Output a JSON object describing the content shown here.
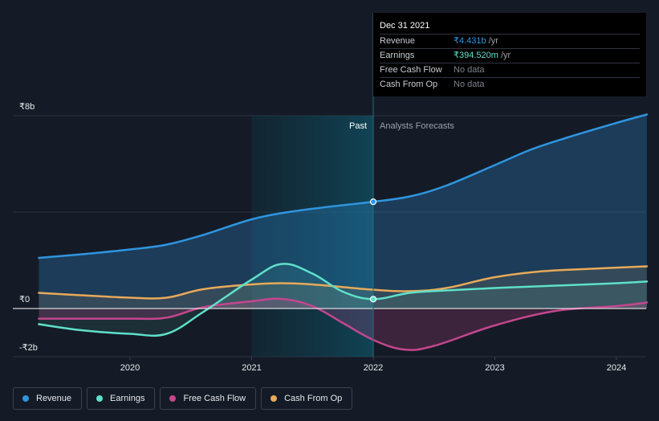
{
  "chart_data": {
    "type": "line",
    "y_tick_labels": [
      "₹8b",
      "₹0",
      "-₹2b"
    ],
    "ylim": [
      -2,
      8
    ],
    "x_tick_labels": [
      "2020",
      "2021",
      "2022",
      "2023",
      "2024"
    ],
    "section_labels": {
      "past": "Past",
      "forecast": "Analysts Forecasts"
    },
    "divider_x": 2022.0,
    "highlight_start_x": 2021.0,
    "series": [
      {
        "name": "Revenue",
        "color": "#2f95e0",
        "x": [
          2019.25,
          2019.6,
          2020.0,
          2020.3,
          2020.6,
          2021.0,
          2021.3,
          2021.6,
          2022.0,
          2022.3,
          2022.6,
          2023.0,
          2023.3,
          2023.6,
          2024.0,
          2024.25
        ],
        "values": [
          2.1,
          2.25,
          2.45,
          2.65,
          3.05,
          3.7,
          4.0,
          4.2,
          4.43,
          4.65,
          5.1,
          5.95,
          6.6,
          7.1,
          7.7,
          8.05
        ]
      },
      {
        "name": "Earnings",
        "color": "#5ee0c9",
        "x": [
          2019.25,
          2019.6,
          2020.0,
          2020.3,
          2020.6,
          2021.0,
          2021.25,
          2021.5,
          2021.75,
          2022.0,
          2022.3,
          2022.6,
          2023.0,
          2023.5,
          2024.0,
          2024.25
        ],
        "values": [
          -0.65,
          -0.9,
          -1.05,
          -1.05,
          -0.15,
          1.2,
          1.85,
          1.45,
          0.7,
          0.39,
          0.65,
          0.75,
          0.85,
          0.95,
          1.05,
          1.12
        ]
      },
      {
        "name": "Free Cash Flow",
        "color": "#c4468f",
        "x": [
          2019.25,
          2019.6,
          2020.0,
          2020.3,
          2020.6,
          2021.0,
          2021.25,
          2021.5,
          2021.75,
          2022.0,
          2022.25,
          2022.5,
          2023.0,
          2023.5,
          2024.0,
          2024.25
        ],
        "values": [
          -0.42,
          -0.42,
          -0.42,
          -0.38,
          0.05,
          0.3,
          0.4,
          0.1,
          -0.6,
          -1.3,
          -1.7,
          -1.55,
          -0.7,
          -0.1,
          0.1,
          0.25
        ]
      },
      {
        "name": "Cash From Op",
        "color": "#e8a95a",
        "x": [
          2019.25,
          2019.6,
          2020.0,
          2020.3,
          2020.6,
          2021.0,
          2021.25,
          2021.5,
          2022.0,
          2022.3,
          2022.6,
          2023.0,
          2023.4,
          2023.8,
          2024.25
        ],
        "values": [
          0.65,
          0.55,
          0.45,
          0.45,
          0.8,
          1.0,
          1.05,
          1.0,
          0.78,
          0.72,
          0.85,
          1.3,
          1.55,
          1.65,
          1.75
        ]
      }
    ]
  },
  "tooltip": {
    "date": "Dec 31 2021",
    "rows": [
      {
        "name": "Revenue",
        "value": "₹4.431b",
        "unit": "/yr",
        "color": "#2f95e0"
      },
      {
        "name": "Earnings",
        "value": "₹394.520m",
        "unit": "/yr",
        "color": "#5ee0c9"
      },
      {
        "name": "Free Cash Flow",
        "value": "No data",
        "unit": ""
      },
      {
        "name": "Cash From Op",
        "value": "No data",
        "unit": ""
      }
    ]
  },
  "legend": [
    {
      "name": "Revenue",
      "color": "#2f95e0"
    },
    {
      "name": "Earnings",
      "color": "#5ee0c9"
    },
    {
      "name": "Free Cash Flow",
      "color": "#c4468f"
    },
    {
      "name": "Cash From Op",
      "color": "#e8a95a"
    }
  ]
}
